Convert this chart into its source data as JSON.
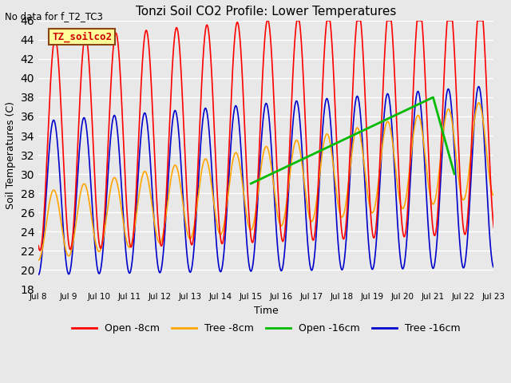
{
  "title": "Tonzi Soil CO2 Profile: Lower Temperatures",
  "top_left_text": "No data for f_T2_TC3",
  "legend_box_label": "TZ_soilco2",
  "xlabel": "Time",
  "ylabel": "Soil Temperatures (C)",
  "ylim": [
    18,
    46
  ],
  "yticks": [
    18,
    20,
    22,
    24,
    26,
    28,
    30,
    32,
    34,
    36,
    38,
    40,
    42,
    44,
    46
  ],
  "xtick_labels": [
    "Jul 8",
    "Jul 9",
    "Jul 10",
    "Jul 11",
    "Jul 12",
    "Jul 13",
    "Jul 14",
    "Jul 15",
    "Jul 16",
    "Jul 17",
    "Jul 18",
    "Jul 19",
    "Jul 20",
    "Jul 21",
    "Jul 22",
    "Jul 23"
  ],
  "xtick_positions": [
    0,
    1,
    2,
    3,
    4,
    5,
    6,
    7,
    8,
    9,
    10,
    11,
    12,
    13,
    14,
    15
  ],
  "line_colors": {
    "open_8cm": "#ff0000",
    "tree_8cm": "#ffa500",
    "open_16cm": "#00bb00",
    "tree_16cm": "#0000cc"
  },
  "legend_labels": [
    "Open -8cm",
    "Tree -8cm",
    "Open -16cm",
    "Tree -16cm"
  ],
  "fig_bg": "#e8e8e8",
  "plot_bg": "#e8e8e8",
  "grid_color": "#ffffff"
}
